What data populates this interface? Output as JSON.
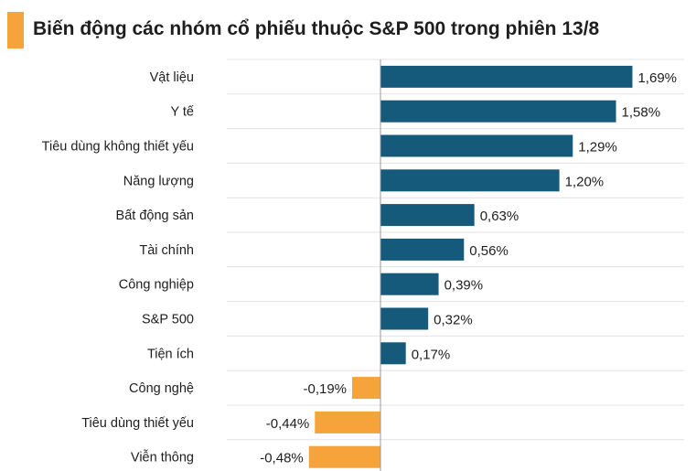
{
  "title": "Biến động các nhóm cổ phiếu thuộc S&P 500 trong phiên 13/8",
  "colors": {
    "accent": "#F5A33A",
    "positive": "#155A7A",
    "negative": "#F5A33A",
    "grid": "#e3e3e3",
    "axis": "#9a9a9a"
  },
  "chart_data": {
    "type": "bar",
    "orientation": "horizontal",
    "title": "Biến động các nhóm cổ phiếu thuộc S&P 500 trong phiên 13/8",
    "categories": [
      "Vật liệu",
      "Y tế",
      "Tiêu dùng không thiết yếu",
      "Năng lượng",
      "Bất động sản",
      "Tài chính",
      "Công nghiệp",
      "S&P 500",
      "Tiện ích",
      "Công nghệ",
      "Tiêu dùng thiết yếu",
      "Viễn thông"
    ],
    "values": [
      1.69,
      1.58,
      1.29,
      1.2,
      0.63,
      0.56,
      0.39,
      0.32,
      0.17,
      -0.19,
      -0.44,
      -0.48
    ],
    "value_labels": [
      "1,69%",
      "1,58%",
      "1,29%",
      "1,20%",
      "0,63%",
      "0,56%",
      "0,39%",
      "0,32%",
      "0,17%",
      "-0,19%",
      "-0,44%",
      "-0,48%"
    ],
    "xlabel": "",
    "ylabel": "",
    "grid": true,
    "legend": "none"
  }
}
